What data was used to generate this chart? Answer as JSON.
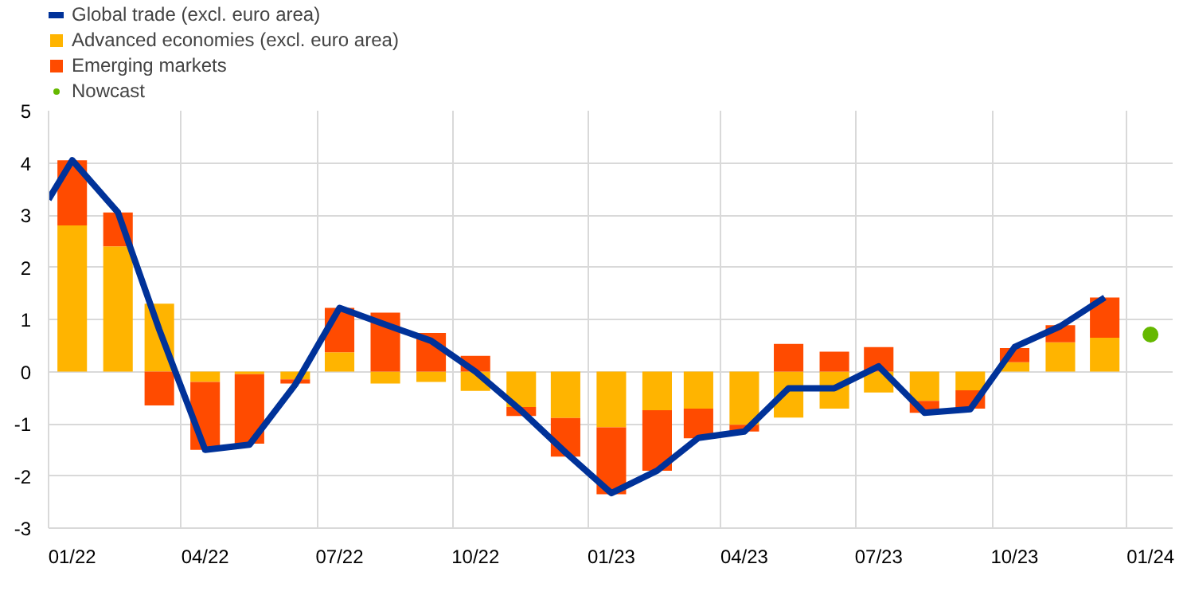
{
  "chart_data": {
    "type": "bar",
    "stacked": true,
    "x": [
      "2022-01",
      "2022-02",
      "2022-03",
      "2022-04",
      "2022-05",
      "2022-06",
      "2022-07",
      "2022-08",
      "2022-09",
      "2022-10",
      "2022-11",
      "2022-12",
      "2023-01",
      "2023-02",
      "2023-03",
      "2023-04",
      "2023-05",
      "2023-06",
      "2023-07",
      "2023-08",
      "2023-09",
      "2023-10",
      "2023-11",
      "2023-12"
    ],
    "series": [
      {
        "name": "Global trade (excl. euro area)",
        "type": "line",
        "color": "#003299",
        "x": [
          "2021-12-16",
          "2022-01",
          "2022-02",
          "2022-03",
          "2022-04",
          "2022-05",
          "2022-06",
          "2022-07",
          "2022-08",
          "2022-09",
          "2022-10",
          "2022-11",
          "2022-12",
          "2023-01",
          "2023-02",
          "2023-03",
          "2023-04",
          "2023-05",
          "2023-06",
          "2023-07",
          "2023-08",
          "2023-09",
          "2023-10",
          "2023-11",
          "2023-12"
        ],
        "values": [
          3.3,
          4.05,
          3.05,
          0.8,
          -1.5,
          -1.4,
          -0.25,
          1.22,
          0.9,
          0.59,
          0.0,
          -0.75,
          -1.55,
          -2.33,
          -1.9,
          -1.27,
          -1.15,
          -0.32,
          -0.32,
          0.1,
          -0.79,
          -0.72,
          0.47,
          0.87,
          1.42
        ]
      },
      {
        "name": "Advanced economies (excl. euro area)",
        "color": "#ffb400",
        "values": [
          2.8,
          2.4,
          1.3,
          -0.2,
          -0.05,
          -0.15,
          0.37,
          -0.23,
          -0.2,
          -0.37,
          -0.68,
          -0.89,
          -1.07,
          -0.74,
          -0.71,
          -1.02,
          -0.88,
          -0.71,
          -0.4,
          -0.56,
          -0.36,
          0.18,
          0.56,
          0.65
        ]
      },
      {
        "name": "Emerging markets",
        "color": "#ff4b00",
        "values": [
          1.25,
          0.65,
          -0.65,
          -1.3,
          -1.33,
          -0.08,
          0.85,
          1.13,
          0.74,
          0.3,
          -0.17,
          -0.74,
          -1.28,
          -1.16,
          -0.57,
          -0.13,
          0.53,
          0.38,
          0.47,
          -0.23,
          -0.35,
          0.27,
          0.33,
          0.77
        ]
      },
      {
        "name": "Nowcast",
        "type": "scatter",
        "color": "#65b800",
        "x": [
          "2024-01"
        ],
        "values": [
          0.71
        ]
      }
    ],
    "xlim": [
      "2021-12-16",
      "2024-01-16"
    ],
    "xticks": [
      {
        "value": "2022-01",
        "label": "01/22"
      },
      {
        "value": "2022-04",
        "label": "04/22"
      },
      {
        "value": "2022-07",
        "label": "07/22"
      },
      {
        "value": "2022-10",
        "label": "10/22"
      },
      {
        "value": "2023-01",
        "label": "01/23"
      },
      {
        "value": "2023-04",
        "label": "04/23"
      },
      {
        "value": "2023-07",
        "label": "07/23"
      },
      {
        "value": "2023-10",
        "label": "10/23"
      },
      {
        "value": "2024-01",
        "label": "01/24"
      },
      {
        "value": "2022-03-16",
        "label": null
      },
      {
        "value": "2022-06-16",
        "label": null
      },
      {
        "value": "2022-09-16",
        "label": null
      },
      {
        "value": "2022-12-16",
        "label": null
      },
      {
        "value": "2023-03-16",
        "label": null
      },
      {
        "value": "2023-06-16",
        "label": null
      },
      {
        "value": "2023-09-16",
        "label": null
      },
      {
        "value": "2023-12-16",
        "label": null
      }
    ],
    "ylim": [
      -3,
      5
    ],
    "yticks": [
      -3,
      -2,
      -1,
      0,
      1,
      2,
      3,
      4,
      5
    ],
    "grid": true,
    "legend": "top left"
  }
}
